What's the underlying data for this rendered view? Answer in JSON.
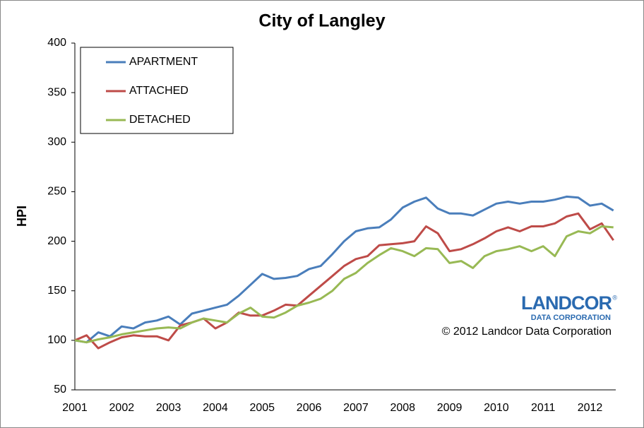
{
  "chart_data": {
    "type": "line",
    "title": "City of Langley",
    "ylabel": "HPI",
    "x": [
      2001,
      2001.25,
      2001.5,
      2001.75,
      2002,
      2002.25,
      2002.5,
      2002.75,
      2003,
      2003.25,
      2003.5,
      2003.75,
      2004,
      2004.25,
      2004.5,
      2004.75,
      2005,
      2005.25,
      2005.5,
      2005.75,
      2006,
      2006.25,
      2006.5,
      2006.75,
      2007,
      2007.25,
      2007.5,
      2007.75,
      2008,
      2008.25,
      2008.5,
      2008.75,
      2009,
      2009.25,
      2009.5,
      2009.75,
      2010,
      2010.25,
      2010.5,
      2010.75,
      2011,
      2011.25,
      2011.5,
      2011.75,
      2012,
      2012.25,
      2012.5
    ],
    "series": [
      {
        "name": "APARTMENT",
        "color": "#4a7ebb",
        "values": [
          100,
          98,
          108,
          104,
          114,
          112,
          118,
          120,
          124,
          116,
          127,
          130,
          133,
          136,
          145,
          156,
          167,
          162,
          163,
          165,
          172,
          175,
          187,
          200,
          210,
          213,
          214,
          222,
          234,
          240,
          244,
          233,
          228,
          228,
          226,
          232,
          238,
          240,
          238,
          240,
          240,
          242,
          245,
          244,
          236,
          238,
          231
        ]
      },
      {
        "name": "ATTACHED",
        "color": "#be4b48",
        "values": [
          100,
          105,
          92,
          98,
          103,
          105,
          104,
          104,
          100,
          115,
          118,
          122,
          112,
          118,
          128,
          125,
          125,
          130,
          136,
          135,
          145,
          155,
          165,
          175,
          182,
          185,
          196,
          197,
          198,
          200,
          215,
          208,
          190,
          192,
          197,
          203,
          210,
          214,
          210,
          215,
          215,
          218,
          225,
          228,
          212,
          218,
          201
        ]
      },
      {
        "name": "DETACHED",
        "color": "#98b954",
        "values": [
          100,
          98,
          101,
          103,
          106,
          108,
          110,
          112,
          113,
          112,
          118,
          122,
          120,
          118,
          127,
          133,
          124,
          123,
          128,
          135,
          138,
          142,
          150,
          162,
          168,
          178,
          186,
          193,
          190,
          185,
          193,
          192,
          178,
          180,
          173,
          185,
          190,
          192,
          195,
          190,
          195,
          185,
          205,
          210,
          208,
          215,
          214
        ]
      }
    ],
    "xlim": [
      2001,
      2012.55
    ],
    "xticks": [
      2001,
      2002,
      2003,
      2004,
      2005,
      2006,
      2007,
      2008,
      2009,
      2010,
      2011,
      2012
    ],
    "ylim": [
      50,
      400
    ],
    "yticks": [
      50,
      100,
      150,
      200,
      250,
      300,
      350,
      400
    ],
    "legend": "top-left",
    "grid": false,
    "logo": "LANDCOR",
    "logo_mark": "®",
    "logo_sub": "DATA CORPORATION",
    "credit": "© 2012 Landcor Data Corporation"
  }
}
